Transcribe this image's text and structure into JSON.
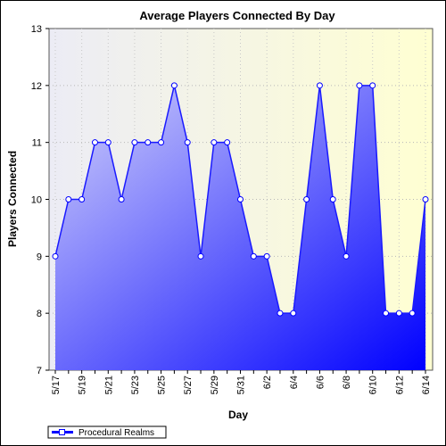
{
  "chart_data": {
    "type": "area",
    "title": "Average Players Connected By Day",
    "xlabel": "Day",
    "ylabel": "Players Connected",
    "ylim": [
      7,
      13
    ],
    "yticks": [
      7,
      8,
      9,
      10,
      11,
      12,
      13
    ],
    "grid": true,
    "legend_position": "bottom-left",
    "x": [
      "5/17",
      "5/18",
      "5/19",
      "5/20",
      "5/21",
      "5/22",
      "5/23",
      "5/24",
      "5/25",
      "5/26",
      "5/27",
      "5/28",
      "5/29",
      "5/30",
      "5/31",
      "6/1",
      "6/2",
      "6/3",
      "6/4",
      "6/5",
      "6/6",
      "6/7",
      "6/8",
      "6/9",
      "6/10",
      "6/11",
      "6/12",
      "6/13",
      "6/14"
    ],
    "xtick_labels": [
      "5/17",
      "5/19",
      "5/21",
      "5/23",
      "5/25",
      "5/27",
      "5/29",
      "5/31",
      "6/2",
      "6/4",
      "6/6",
      "6/8",
      "6/10",
      "6/12",
      "6/14"
    ],
    "series": [
      {
        "name": "Procedural Realms",
        "values": [
          9,
          10,
          10,
          11,
          11,
          10,
          11,
          11,
          11,
          12,
          11,
          9,
          11,
          11,
          10,
          9,
          9,
          8,
          8,
          10,
          12,
          10,
          9,
          12,
          12,
          8,
          8,
          8,
          10
        ],
        "color": "#0000ff"
      }
    ],
    "colors": {
      "plot_bg_top_left": "#ececf5",
      "plot_bg_top_right": "#ffffd2",
      "fill_light": "#d2d2fa",
      "fill_dark": "#0000ff",
      "line": "#1a1aff",
      "marker_fill": "#ffffff"
    }
  }
}
